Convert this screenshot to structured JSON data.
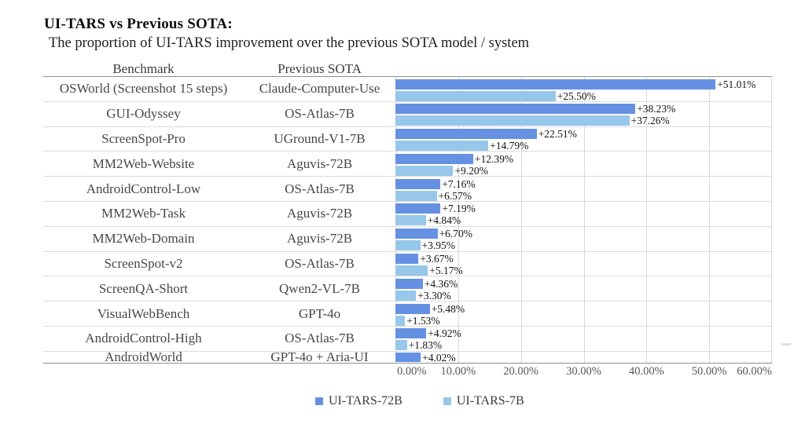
{
  "header": {
    "title": "UI-TARS vs Previous SOTA:",
    "subtitle": "The proportion of UI-TARS improvement over the previous SOTA model / system"
  },
  "table": {
    "benchmark_header": "Benchmark",
    "sota_header": "Previous SOTA"
  },
  "chart_data": {
    "type": "bar",
    "orientation": "horizontal",
    "xlim": [
      0,
      60
    ],
    "x_ticks": [
      "0.00%",
      "10.00%",
      "20.00%",
      "30.00%",
      "40.00%",
      "50.00%",
      "60.00%"
    ],
    "grid": true,
    "legend_position": "bottom",
    "series_names": [
      "UI-TARS-72B",
      "UI-TARS-7B"
    ],
    "colors": {
      "ui_tars_72b": "#6691E3",
      "ui_tars_7b": "#97C7EA"
    },
    "rows": [
      {
        "benchmark": "OSWorld (Screenshot 15 steps)",
        "previous_sota": "Claude-Computer-Use",
        "ui_tars_72b": 51.01,
        "ui_tars_7b": 25.5,
        "label_72b": "+51.01%",
        "label_7b": "+25.50%"
      },
      {
        "benchmark": "GUI-Odyssey",
        "previous_sota": "OS-Atlas-7B",
        "ui_tars_72b": 38.23,
        "ui_tars_7b": 37.26,
        "label_72b": "+38.23%",
        "label_7b": "+37.26%"
      },
      {
        "benchmark": "ScreenSpot-Pro",
        "previous_sota": "UGround-V1-7B",
        "ui_tars_72b": 22.51,
        "ui_tars_7b": 14.79,
        "label_72b": "+22.51%",
        "label_7b": "+14.79%"
      },
      {
        "benchmark": "MM2Web-Website",
        "previous_sota": "Aguvis-72B",
        "ui_tars_72b": 12.39,
        "ui_tars_7b": 9.2,
        "label_72b": "+12.39%",
        "label_7b": "+9.20%"
      },
      {
        "benchmark": "AndroidControl-Low",
        "previous_sota": "OS-Atlas-7B",
        "ui_tars_72b": 7.16,
        "ui_tars_7b": 6.57,
        "label_72b": "+7.16%",
        "label_7b": "+6.57%"
      },
      {
        "benchmark": "MM2Web-Task",
        "previous_sota": "Aguvis-72B",
        "ui_tars_72b": 7.19,
        "ui_tars_7b": 4.84,
        "label_72b": "+7.19%",
        "label_7b": "+4.84%"
      },
      {
        "benchmark": "MM2Web-Domain",
        "previous_sota": "Aguvis-72B",
        "ui_tars_72b": 6.7,
        "ui_tars_7b": 3.95,
        "label_72b": "+6.70%",
        "label_7b": "+3.95%"
      },
      {
        "benchmark": "ScreenSpot-v2",
        "previous_sota": "OS-Atlas-7B",
        "ui_tars_72b": 3.67,
        "ui_tars_7b": 5.17,
        "label_72b": "+3.67%",
        "label_7b": "+5.17%"
      },
      {
        "benchmark": "ScreenQA-Short",
        "previous_sota": "Qwen2-VL-7B",
        "ui_tars_72b": 4.36,
        "ui_tars_7b": 3.3,
        "label_72b": "+4.36%",
        "label_7b": "+3.30%"
      },
      {
        "benchmark": "VisualWebBench",
        "previous_sota": "GPT-4o",
        "ui_tars_72b": 5.48,
        "ui_tars_7b": 1.53,
        "label_72b": "+5.48%",
        "label_7b": "+1.53%"
      },
      {
        "benchmark": "AndroidControl-High",
        "previous_sota": "OS-Atlas-7B",
        "ui_tars_72b": 4.92,
        "ui_tars_7b": 1.83,
        "label_72b": "+4.92%",
        "label_7b": "+1.83%"
      },
      {
        "benchmark": "AndroidWorld",
        "previous_sota": "GPT-4o + Aria-UI",
        "ui_tars_72b": 4.02,
        "ui_tars_7b": null,
        "label_72b": "+4.02%",
        "label_7b": null
      }
    ]
  },
  "legend": [
    {
      "label": "UI-TARS-72B",
      "color": "#6691E3"
    },
    {
      "label": "UI-TARS-7B",
      "color": "#97C7EA"
    }
  ]
}
